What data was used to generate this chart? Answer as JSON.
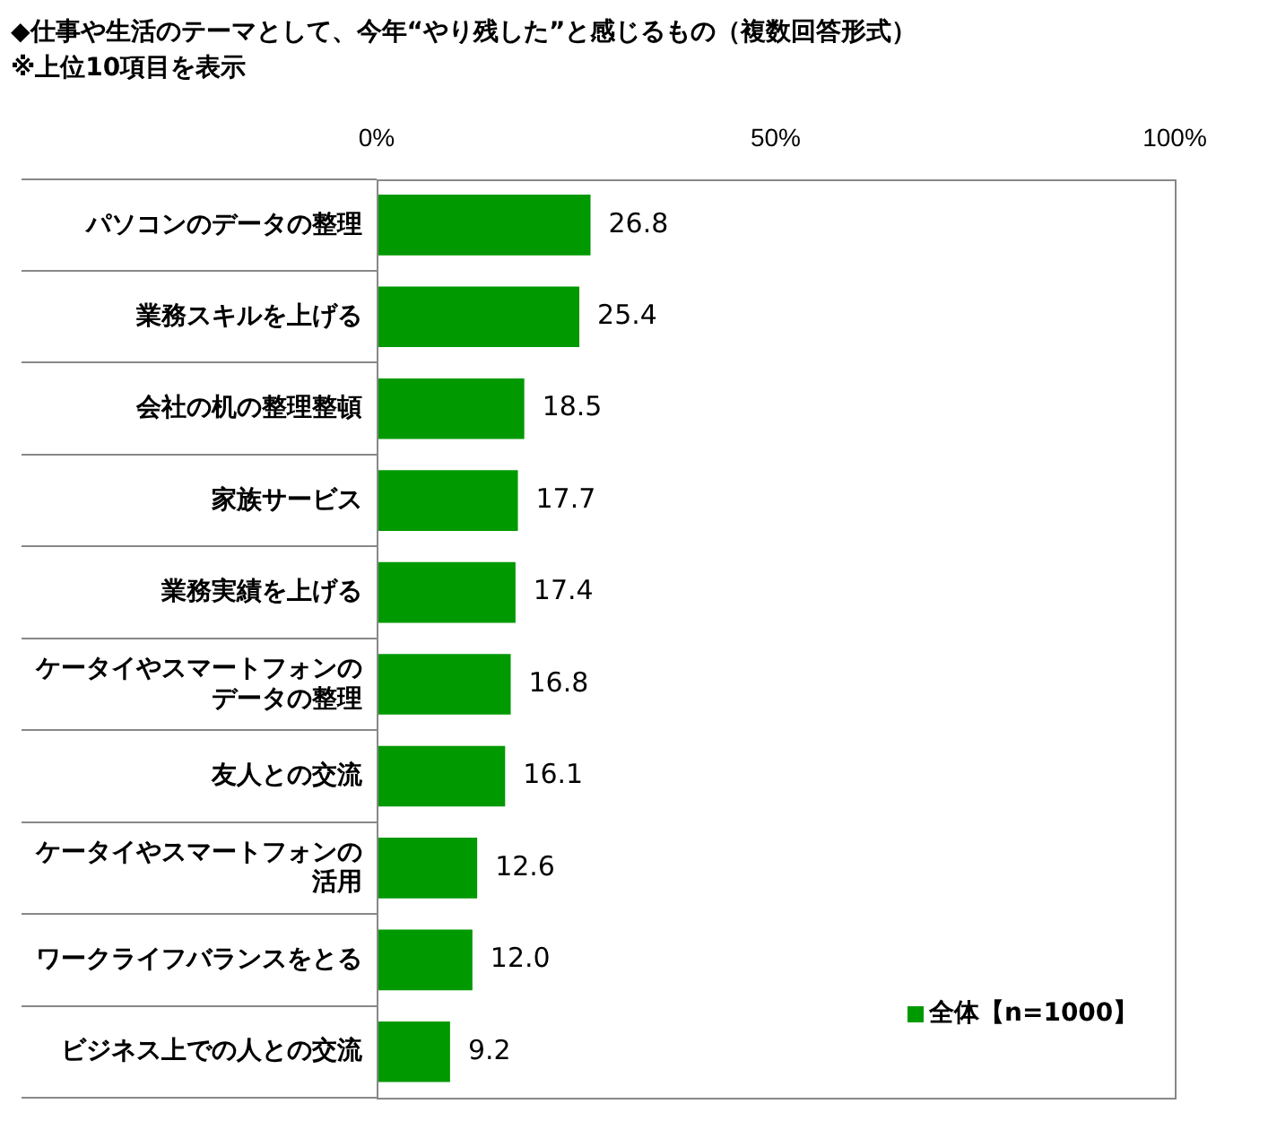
{
  "chart_data": {
    "type": "bar",
    "orientation": "horizontal",
    "title": "◆仕事や生活のテーマとして、今年“やり残した”と感じるもの（複数回答形式）",
    "subtitle": "※上位10項目を表示",
    "categories": [
      "パソコンのデータの整理",
      "業務スキルを上げる",
      "会社の机の整理整頓",
      "家族サービス",
      "業務実績を上げる",
      "ケータイやスマートフォンのデータの整理",
      "友人との交流",
      "ケータイやスマートフォンの活用",
      "ワークライフバランスをとる",
      "ビジネス上での人との交流"
    ],
    "series": [
      {
        "name": "全体【n=1000】",
        "color": "#009900",
        "values": [
          26.8,
          25.4,
          18.5,
          17.7,
          17.4,
          16.8,
          16.1,
          12.6,
          12.0,
          9.2
        ],
        "value_labels": [
          "26.8",
          "25.4",
          "18.5",
          "17.7",
          "17.4",
          "16.8",
          "16.1",
          "12.6",
          "12.0",
          "9.2"
        ]
      }
    ],
    "xlim": [
      0,
      100
    ],
    "xticks": [
      {
        "value": 0,
        "label": "0%"
      },
      {
        "value": 50,
        "label": "50%"
      },
      {
        "value": 100,
        "label": "100%"
      }
    ],
    "legend": "bottom right"
  }
}
